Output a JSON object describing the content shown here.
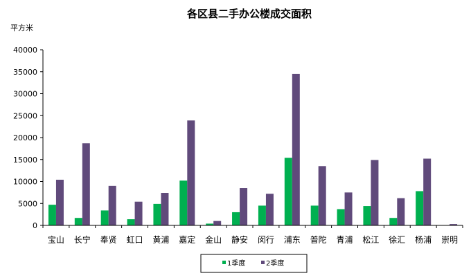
{
  "chart_data": {
    "type": "bar",
    "title": "各区县二手办公楼成交面积",
    "ylabel": "平方米",
    "xlabel": "",
    "ylim": [
      0,
      40000
    ],
    "yticks": [
      0,
      5000,
      10000,
      15000,
      20000,
      25000,
      30000,
      35000,
      40000
    ],
    "grid": false,
    "legend_position": "bottom",
    "categories": [
      "宝山",
      "长宁",
      "奉贤",
      "虹口",
      "黄浦",
      "嘉定",
      "金山",
      "静安",
      "闵行",
      "浦东",
      "普陀",
      "青浦",
      "松江",
      "徐汇",
      "杨浦",
      "崇明"
    ],
    "series": [
      {
        "name": "1季度",
        "color": "#00b050",
        "values": [
          4700,
          1700,
          3400,
          1400,
          4900,
          10200,
          400,
          3000,
          4500,
          15400,
          4500,
          3700,
          4400,
          1700,
          7800,
          0
        ]
      },
      {
        "name": "2季度",
        "color": "#604a7b",
        "values": [
          10400,
          18700,
          9000,
          5400,
          7400,
          23900,
          1000,
          8500,
          7200,
          34500,
          13500,
          7500,
          14900,
          6200,
          15200,
          300
        ]
      }
    ]
  }
}
